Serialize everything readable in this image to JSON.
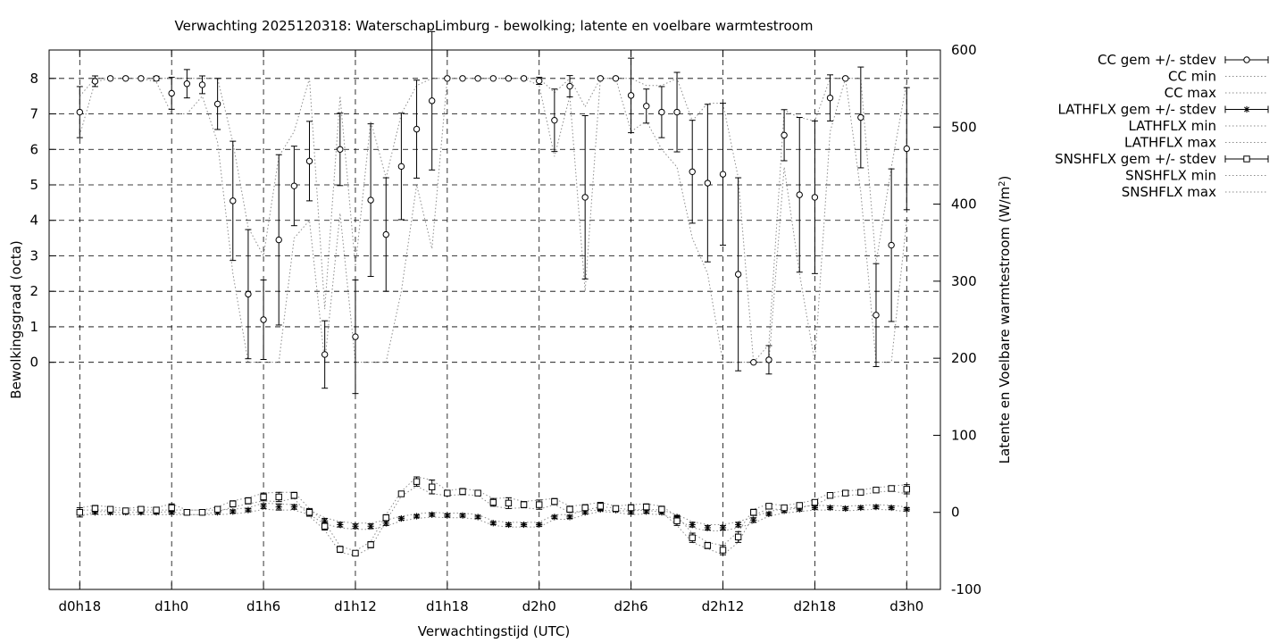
{
  "chart_data": {
    "type": "line",
    "title": "Verwachting 2025120318: WaterschapLimburg - bewolking; latente en voelbare warmtestroom",
    "xlabel": "Verwachtingstijd (UTC)",
    "ylabel": "Bewolkingsgraad (octa)",
    "y2label_prefix": "Latente en Voelbare warmtestroom (W/m",
    "y2label_sup": "2",
    "y2label_suffix": ")",
    "x_ticks": [
      {
        "h": 0,
        "label": "d0h18"
      },
      {
        "h": 6,
        "label": "d1h0"
      },
      {
        "h": 12,
        "label": "d1h6"
      },
      {
        "h": 18,
        "label": "d1h12"
      },
      {
        "h": 24,
        "label": "d1h18"
      },
      {
        "h": 30,
        "label": "d2h0"
      },
      {
        "h": 36,
        "label": "d2h6"
      },
      {
        "h": 42,
        "label": "d2h12"
      },
      {
        "h": 48,
        "label": "d2h18"
      },
      {
        "h": 54,
        "label": "d3h0"
      }
    ],
    "xlim": [
      -2,
      56.2
    ],
    "ylim": [
      -6.4,
      8.8
    ],
    "y_ticks": [
      0,
      1,
      2,
      3,
      4,
      5,
      6,
      7,
      8
    ],
    "y2lim": [
      -100,
      600
    ],
    "y2_ticks": [
      -100,
      0,
      100,
      200,
      300,
      400,
      500,
      600
    ],
    "grid": true,
    "legend_position": "outside-right",
    "legend": [
      {
        "label": "CC gem +/- stdev",
        "style": "errorbar-circle"
      },
      {
        "label": "CC min",
        "style": "dotted"
      },
      {
        "label": "CC max",
        "style": "dotted"
      },
      {
        "label": "LATHFLX gem +/- stdev",
        "style": "errorbar-star"
      },
      {
        "label": "LATHFLX min",
        "style": "dotted"
      },
      {
        "label": "LATHFLX max",
        "style": "dotted"
      },
      {
        "label": "SNSHFLX gem +/- stdev",
        "style": "errorbar-square"
      },
      {
        "label": "SNSHFLX min",
        "style": "dotted"
      },
      {
        "label": "SNSHFLX max",
        "style": "dotted"
      }
    ],
    "series": [
      {
        "name": "CC gem +/- stdev",
        "axis": "y1",
        "marker": "circle",
        "points": [
          [
            0,
            7.05,
            0.72
          ],
          [
            1,
            7.92,
            0.15
          ],
          [
            2,
            8.0,
            0
          ],
          [
            3,
            8.0,
            0
          ],
          [
            4,
            8.0,
            0
          ],
          [
            5,
            8.0,
            0.06
          ],
          [
            6,
            7.58,
            0.45
          ],
          [
            7,
            7.85,
            0.4
          ],
          [
            8,
            7.82,
            0.25
          ],
          [
            9,
            7.28,
            0.72
          ],
          [
            10,
            4.55,
            1.68
          ],
          [
            11,
            1.92,
            1.82
          ],
          [
            12,
            1.2,
            1.12
          ],
          [
            13,
            3.45,
            2.4
          ],
          [
            14,
            4.97,
            1.12
          ],
          [
            15,
            5.67,
            1.12
          ],
          [
            16,
            0.22,
            0.95
          ],
          [
            17,
            6.0,
            1.02
          ],
          [
            18,
            0.72,
            1.6
          ],
          [
            19,
            4.57,
            2.15
          ],
          [
            20,
            3.6,
            1.6
          ],
          [
            21,
            5.52,
            1.5
          ],
          [
            22,
            6.57,
            1.38
          ],
          [
            23,
            7.37,
            1.95
          ],
          [
            24,
            8.0,
            0
          ],
          [
            25,
            8.0,
            0
          ],
          [
            26,
            8.0,
            0
          ],
          [
            27,
            8.0,
            0
          ],
          [
            28,
            8.0,
            0
          ],
          [
            29,
            8.0,
            0
          ],
          [
            30,
            7.93,
            0.1
          ],
          [
            31,
            6.82,
            0.88
          ],
          [
            32,
            7.78,
            0.3
          ],
          [
            33,
            4.65,
            2.3
          ],
          [
            34,
            8.0,
            0
          ],
          [
            35,
            8.0,
            0
          ],
          [
            36,
            7.52,
            1.05
          ],
          [
            37,
            7.22,
            0.48
          ],
          [
            38,
            7.05,
            0.72
          ],
          [
            39,
            7.05,
            1.12
          ],
          [
            40,
            5.37,
            1.45
          ],
          [
            41,
            5.05,
            2.22
          ],
          [
            42,
            5.3,
            2.0
          ],
          [
            43,
            2.48,
            2.72
          ],
          [
            44,
            0.0,
            0
          ],
          [
            45,
            0.07,
            0.4
          ],
          [
            46,
            6.4,
            0.72
          ],
          [
            47,
            4.72,
            2.18
          ],
          [
            48,
            4.65,
            2.15
          ],
          [
            49,
            7.45,
            0.65
          ],
          [
            50,
            8.0,
            0
          ],
          [
            51,
            6.9,
            1.42
          ],
          [
            52,
            1.33,
            1.45
          ],
          [
            53,
            3.3,
            2.15
          ],
          [
            54,
            6.02,
            1.72
          ]
        ]
      },
      {
        "name": "CC min",
        "axis": "y1",
        "values": [
          6.4,
          7.9,
          8,
          8,
          8,
          7.9,
          7.0,
          7.0,
          7.5,
          6.2,
          2.5,
          0,
          0,
          0,
          3.5,
          4.0,
          0,
          4.2,
          0,
          0,
          0,
          2.0,
          5.0,
          3.2,
          8,
          8,
          8,
          8,
          8,
          8,
          7.8,
          5.8,
          7.5,
          2.0,
          8,
          8,
          6.5,
          6.8,
          6.0,
          5.5,
          3.5,
          2.5,
          0,
          0,
          0,
          0,
          5.5,
          2.5,
          0,
          6.5,
          8,
          4.8,
          0,
          0,
          4.0
        ]
      },
      {
        "name": "CC max",
        "axis": "y1",
        "values": [
          7.5,
          8,
          8,
          8,
          8,
          8,
          8,
          8,
          8,
          8,
          6.2,
          3.8,
          3.0,
          5.8,
          6.5,
          8,
          1.5,
          7.5,
          2.7,
          6.8,
          5.2,
          7.0,
          7.8,
          8,
          8,
          8,
          8,
          8,
          8,
          8,
          8,
          7.6,
          8,
          7.2,
          8,
          8,
          8,
          7.8,
          7.8,
          8,
          6.8,
          7.3,
          7.3,
          5.2,
          0,
          0.5,
          7.1,
          6.9,
          6.8,
          8,
          8,
          8,
          2.8,
          5.5,
          7.9
        ]
      },
      {
        "name": "LATHFLX gem +/- stdev",
        "axis": "y2",
        "marker": "star",
        "points": [
          [
            0,
            0,
            2
          ],
          [
            1,
            0,
            2
          ],
          [
            2,
            0,
            2
          ],
          [
            3,
            0,
            2
          ],
          [
            4,
            0,
            2
          ],
          [
            5,
            0,
            2
          ],
          [
            6,
            0,
            2
          ],
          [
            7,
            0,
            2
          ],
          [
            8,
            0,
            2
          ],
          [
            9,
            0,
            2
          ],
          [
            10,
            1,
            2
          ],
          [
            11,
            3,
            2
          ],
          [
            12,
            8,
            3
          ],
          [
            13,
            7,
            4
          ],
          [
            14,
            7,
            3
          ],
          [
            15,
            0,
            2
          ],
          [
            16,
            -11,
            3
          ],
          [
            17,
            -16,
            3
          ],
          [
            18,
            -18,
            3
          ],
          [
            19,
            -18,
            3
          ],
          [
            20,
            -14,
            3
          ],
          [
            21,
            -8,
            2
          ],
          [
            22,
            -5,
            2
          ],
          [
            23,
            -3,
            2
          ],
          [
            24,
            -4,
            2
          ],
          [
            25,
            -4,
            2
          ],
          [
            26,
            -6,
            2
          ],
          [
            27,
            -14,
            2
          ],
          [
            28,
            -16,
            2
          ],
          [
            29,
            -16,
            2
          ],
          [
            30,
            -16,
            2
          ],
          [
            31,
            -6,
            2
          ],
          [
            32,
            -6,
            2
          ],
          [
            33,
            0,
            2
          ],
          [
            34,
            4,
            2
          ],
          [
            35,
            3,
            2
          ],
          [
            36,
            0,
            2
          ],
          [
            37,
            1,
            2
          ],
          [
            38,
            0,
            2
          ],
          [
            39,
            -6,
            2
          ],
          [
            40,
            -16,
            3
          ],
          [
            41,
            -20,
            3
          ],
          [
            42,
            -20,
            3
          ],
          [
            43,
            -16,
            3
          ],
          [
            44,
            -10,
            3
          ],
          [
            45,
            -2,
            2
          ],
          [
            46,
            2,
            2
          ],
          [
            47,
            4,
            2
          ],
          [
            48,
            6,
            2
          ],
          [
            49,
            6,
            2
          ],
          [
            50,
            5,
            2
          ],
          [
            51,
            6,
            2
          ],
          [
            52,
            7,
            2
          ],
          [
            53,
            6,
            2
          ],
          [
            54,
            4,
            2
          ]
        ]
      },
      {
        "name": "LATHFLX min",
        "axis": "y2",
        "values": [
          -3,
          -3,
          -3,
          -3,
          -3,
          -3,
          -3,
          -3,
          -3,
          -3,
          -2,
          0,
          4,
          3,
          3,
          -3,
          -15,
          -20,
          -22,
          -22,
          -18,
          -11,
          -8,
          -6,
          -7,
          -7,
          -9,
          -17,
          -19,
          -19,
          -19,
          -9,
          -9,
          -3,
          1,
          0,
          -3,
          -2,
          -3,
          -9,
          -20,
          -24,
          -24,
          -20,
          -14,
          -5,
          -1,
          1,
          3,
          3,
          2,
          3,
          4,
          3,
          1
        ]
      },
      {
        "name": "LATHFLX max",
        "axis": "y2",
        "values": [
          3,
          3,
          3,
          3,
          3,
          3,
          3,
          3,
          3,
          3,
          4,
          6,
          12,
          11,
          10,
          3,
          -7,
          -12,
          -14,
          -14,
          -10,
          -5,
          -2,
          0,
          -1,
          -1,
          -3,
          -11,
          -13,
          -13,
          -13,
          -3,
          -3,
          3,
          7,
          6,
          3,
          4,
          3,
          -3,
          -12,
          -16,
          -16,
          -12,
          -6,
          1,
          5,
          7,
          9,
          9,
          8,
          9,
          10,
          9,
          7
        ]
      },
      {
        "name": "SNSHFLX gem +/- stdev",
        "axis": "y2",
        "marker": "square",
        "points": [
          [
            0,
            0,
            6
          ],
          [
            1,
            5,
            4
          ],
          [
            2,
            4,
            3
          ],
          [
            3,
            2,
            3
          ],
          [
            4,
            4,
            3
          ],
          [
            5,
            3,
            3
          ],
          [
            6,
            6,
            5
          ],
          [
            7,
            0,
            3
          ],
          [
            8,
            0,
            3
          ],
          [
            9,
            4,
            3
          ],
          [
            10,
            11,
            4
          ],
          [
            11,
            15,
            4
          ],
          [
            12,
            20,
            5
          ],
          [
            13,
            20,
            6
          ],
          [
            14,
            22,
            4
          ],
          [
            15,
            0,
            5
          ],
          [
            16,
            -18,
            5
          ],
          [
            17,
            -48,
            4
          ],
          [
            18,
            -53,
            3
          ],
          [
            19,
            -42,
            4
          ],
          [
            20,
            -7,
            4
          ],
          [
            21,
            24,
            3
          ],
          [
            22,
            40,
            6
          ],
          [
            23,
            33,
            9
          ],
          [
            24,
            25,
            3
          ],
          [
            25,
            27,
            4
          ],
          [
            26,
            25,
            3
          ],
          [
            27,
            13,
            5
          ],
          [
            28,
            12,
            7
          ],
          [
            29,
            10,
            4
          ],
          [
            30,
            10,
            6
          ],
          [
            31,
            14,
            4
          ],
          [
            32,
            4,
            4
          ],
          [
            33,
            6,
            4
          ],
          [
            34,
            8,
            5
          ],
          [
            35,
            5,
            3
          ],
          [
            36,
            6,
            4
          ],
          [
            37,
            7,
            4
          ],
          [
            38,
            4,
            4
          ],
          [
            39,
            -11,
            6
          ],
          [
            40,
            -33,
            6
          ],
          [
            41,
            -43,
            4
          ],
          [
            42,
            -49,
            6
          ],
          [
            43,
            -32,
            7
          ],
          [
            44,
            0,
            4
          ],
          [
            45,
            8,
            3
          ],
          [
            46,
            6,
            3
          ],
          [
            47,
            9,
            3
          ],
          [
            48,
            13,
            3
          ],
          [
            49,
            22,
            3
          ],
          [
            50,
            25,
            3
          ],
          [
            51,
            26,
            3
          ],
          [
            52,
            29,
            3
          ],
          [
            53,
            31,
            3
          ],
          [
            54,
            30,
            6
          ]
        ]
      },
      {
        "name": "SNSHFLX min",
        "axis": "y2",
        "values": [
          -6,
          1,
          1,
          -1,
          1,
          0,
          1,
          -3,
          -3,
          1,
          7,
          11,
          15,
          14,
          18,
          -5,
          -23,
          -52,
          -56,
          -46,
          -11,
          21,
          34,
          24,
          22,
          23,
          22,
          8,
          5,
          6,
          4,
          10,
          0,
          2,
          3,
          2,
          2,
          3,
          0,
          -17,
          -39,
          -47,
          -55,
          -39,
          -4,
          5,
          3,
          6,
          10,
          19,
          22,
          23,
          26,
          28,
          24
        ]
      },
      {
        "name": "SNSHFLX max",
        "axis": "y2",
        "values": [
          6,
          9,
          7,
          5,
          7,
          6,
          11,
          3,
          3,
          7,
          15,
          19,
          25,
          26,
          26,
          5,
          -13,
          -44,
          -50,
          -38,
          -3,
          27,
          46,
          42,
          28,
          31,
          28,
          18,
          19,
          14,
          16,
          18,
          8,
          10,
          13,
          8,
          10,
          11,
          8,
          -5,
          -27,
          -39,
          -43,
          -25,
          4,
          11,
          9,
          12,
          16,
          25,
          28,
          29,
          32,
          34,
          36
        ]
      }
    ]
  }
}
